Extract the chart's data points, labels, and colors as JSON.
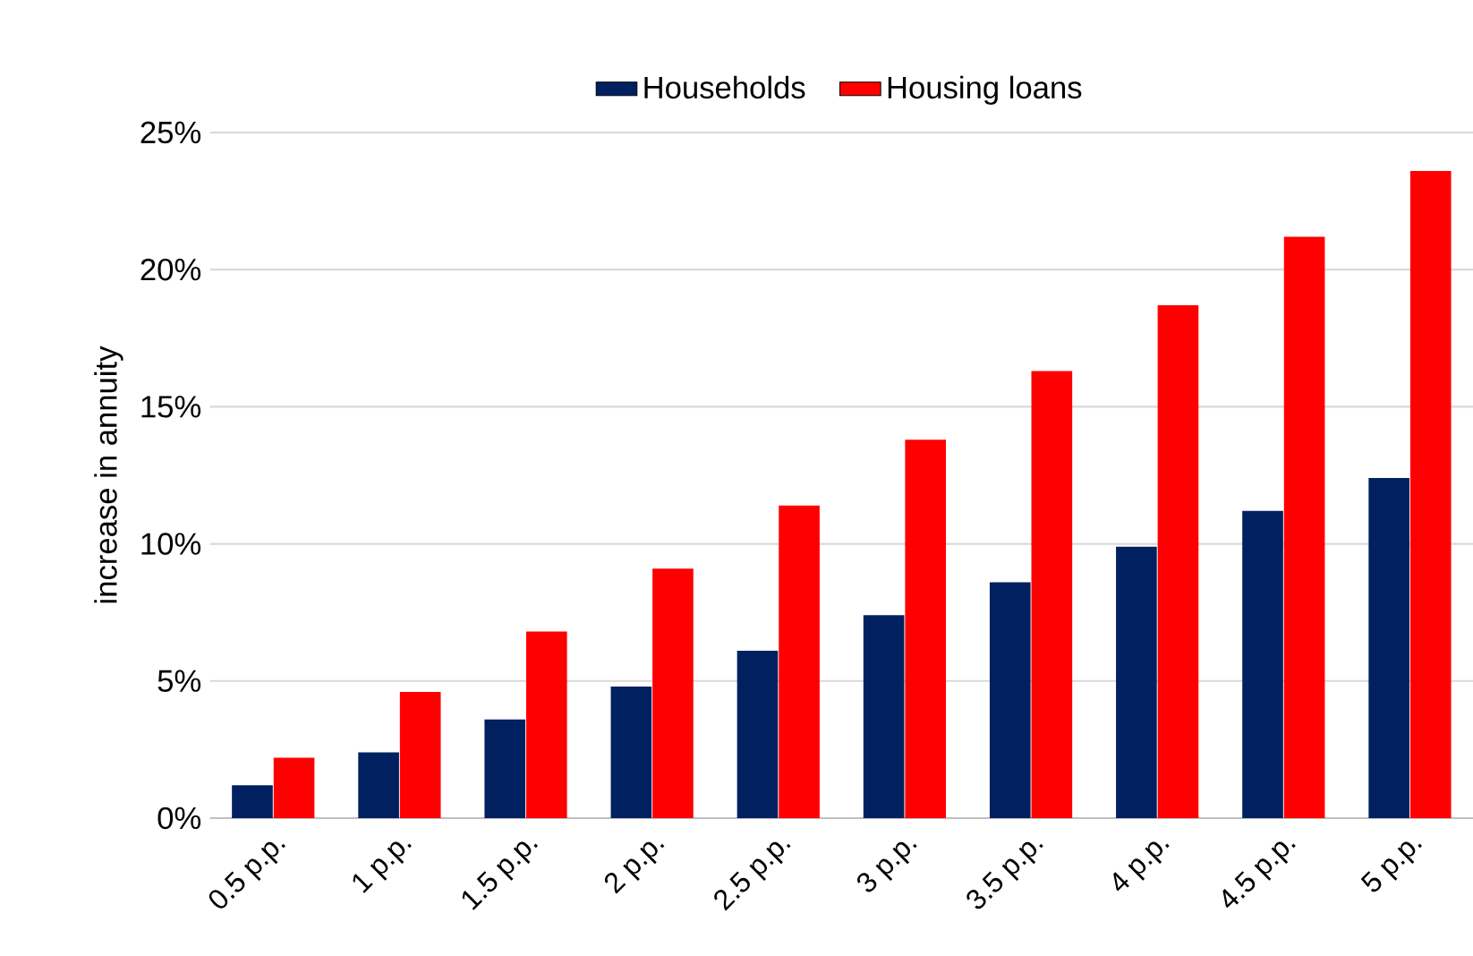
{
  "chart_data": {
    "type": "bar",
    "ylabel": "increase in annuity",
    "categories": [
      "0.5 p.p.",
      "1 p.p.",
      "1.5 p.p.",
      "2 p.p.",
      "2.5 p.p.",
      "3 p.p.",
      "3.5 p.p.",
      "4 p.p.",
      "4.5 p.p.",
      "5 p.p."
    ],
    "series": [
      {
        "name": "Households",
        "color": "#002060",
        "values": [
          1.2,
          2.4,
          3.6,
          4.8,
          6.1,
          7.4,
          8.6,
          9.9,
          11.2,
          12.4
        ]
      },
      {
        "name": "Housing loans",
        "color": "#ff0000",
        "values": [
          2.2,
          4.6,
          6.8,
          9.1,
          11.4,
          13.8,
          16.3,
          18.7,
          21.2,
          23.6
        ]
      }
    ],
    "ylim": [
      0,
      25
    ],
    "yticks": [
      {
        "value": 0,
        "label": "0%"
      },
      {
        "value": 5,
        "label": "5%"
      },
      {
        "value": 10,
        "label": "10%"
      },
      {
        "value": 15,
        "label": "15%"
      },
      {
        "value": 20,
        "label": "20%"
      },
      {
        "value": 25,
        "label": "25%"
      }
    ],
    "grid": "y",
    "legend": "top"
  }
}
